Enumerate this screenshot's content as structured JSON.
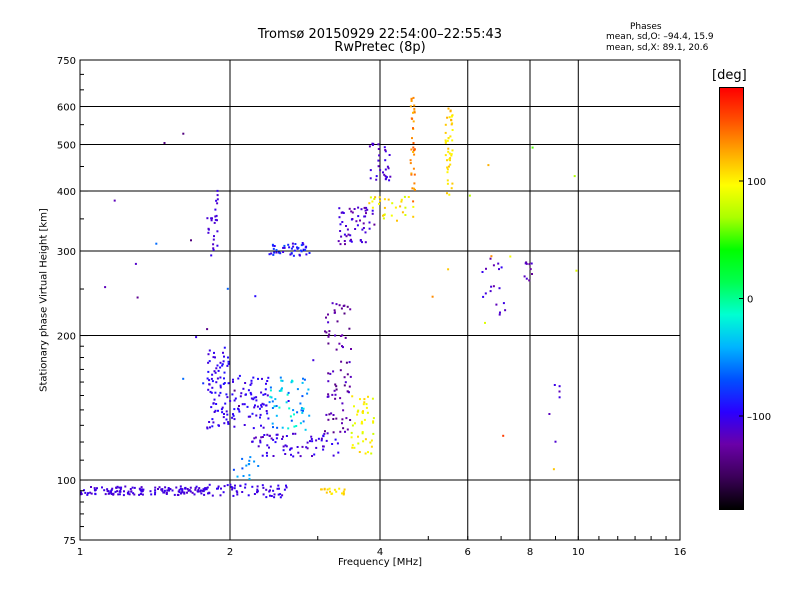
{
  "header": {
    "title_line1": "Tromsø 20150929 22:54:00–22:55:43",
    "title_line2": "RwPretec (8p)",
    "phases_heading": "Phases",
    "phases_o": "mean, sd,O: –94.4, 15.9",
    "phases_x": "mean, sd,X:  89.1, 20.6"
  },
  "colorbar": {
    "title": "[deg]",
    "min": -180,
    "max": 180,
    "ticks": [
      {
        "value": 100,
        "label": "100"
      },
      {
        "value": 0,
        "label": "0"
      },
      {
        "value": -100,
        "label": "–100"
      }
    ],
    "colors": [
      "#000000",
      "#3c005a",
      "#6a00a8",
      "#2a00ff",
      "#0050ff",
      "#00b4ff",
      "#00ffd2",
      "#00ff50",
      "#00ff00",
      "#aaff00",
      "#ffff00",
      "#ffaa00",
      "#ff5000",
      "#ff0000"
    ]
  },
  "chart_data": {
    "type": "scatter",
    "xlabel": "Frequency [MHz]",
    "ylabel": "Stationary phase Virtual Height [km]",
    "x_scale": "log2",
    "y_scale": "log",
    "xlim": [
      1,
      16
    ],
    "ylim": [
      75,
      750
    ],
    "x_ticks": [
      1,
      2,
      4,
      8,
      16
    ],
    "x_minor_ticks": [
      6,
      10
    ],
    "y_ticks": [
      75,
      100,
      200,
      300,
      400,
      500,
      600,
      750
    ],
    "x_gridlines": [
      2,
      4,
      6,
      8,
      10
    ],
    "y_gridlines": [
      100,
      200,
      300,
      400,
      500,
      600
    ],
    "grid": true,
    "clusters": [
      {
        "x": [
          1.0,
          1.8
        ],
        "y": [
          93,
          97
        ],
        "phase": [
          -115,
          -100
        ],
        "n": 150
      },
      {
        "x": [
          1.8,
          2.6
        ],
        "y": [
          92,
          98
        ],
        "phase": [
          -112,
          -98
        ],
        "n": 60
      },
      {
        "x": [
          1.8,
          2.0
        ],
        "y": [
          128,
          192
        ],
        "phase": [
          -110,
          -90
        ],
        "n": 80
      },
      {
        "x": [
          2.0,
          2.4
        ],
        "y": [
          128,
          165
        ],
        "phase": [
          -110,
          -90
        ],
        "n": 70
      },
      {
        "x": [
          2.4,
          2.9
        ],
        "y": [
          127,
          165
        ],
        "phase": [
          -70,
          -10
        ],
        "n": 55
      },
      {
        "x": [
          2.2,
          3.3
        ],
        "y": [
          112,
          125
        ],
        "phase": [
          -120,
          -95
        ],
        "n": 70
      },
      {
        "x": [
          3.1,
          3.5
        ],
        "y": [
          125,
          238
        ],
        "phase": [
          -140,
          -110
        ],
        "n": 80
      },
      {
        "x": [
          3.5,
          3.9
        ],
        "y": [
          113,
          150
        ],
        "phase": [
          80,
          115
        ],
        "n": 45
      },
      {
        "x": [
          1.8,
          1.9
        ],
        "y": [
          300,
          410
        ],
        "phase": [
          -115,
          -100
        ],
        "n": 25
      },
      {
        "x": [
          2.4,
          2.9
        ],
        "y": [
          293,
          312
        ],
        "phase": [
          -110,
          -70
        ],
        "n": 45
      },
      {
        "x": [
          3.3,
          3.9
        ],
        "y": [
          310,
          370
        ],
        "phase": [
          -130,
          -100
        ],
        "n": 55
      },
      {
        "x": [
          3.8,
          4.2
        ],
        "y": [
          420,
          505
        ],
        "phase": [
          -120,
          -100
        ],
        "n": 30
      },
      {
        "x": [
          3.8,
          4.7
        ],
        "y": [
          345,
          390
        ],
        "phase": [
          80,
          120
        ],
        "n": 30
      },
      {
        "x": [
          4.6,
          4.7
        ],
        "y": [
          380,
          630
        ],
        "phase": [
          120,
          150
        ],
        "n": 35
      },
      {
        "x": [
          5.4,
          5.6
        ],
        "y": [
          380,
          600
        ],
        "phase": [
          95,
          125
        ],
        "n": 45
      },
      {
        "x": [
          6.4,
          7.2
        ],
        "y": [
          220,
          295
        ],
        "phase": [
          -130,
          -100
        ],
        "n": 18
      },
      {
        "x": [
          7.8,
          8.1
        ],
        "y": [
          260,
          285
        ],
        "phase": [
          -130,
          -110
        ],
        "n": 10
      },
      {
        "x": [
          8.6,
          9.2
        ],
        "y": [
          115,
          160
        ],
        "phase": [
          -120,
          -100
        ],
        "n": 6
      },
      {
        "x": [
          3.0,
          3.4
        ],
        "y": [
          93,
          96
        ],
        "phase": [
          100,
          118
        ],
        "n": 18
      },
      {
        "x": [
          2.0,
          2.3
        ],
        "y": [
          100,
          112
        ],
        "phase": [
          -80,
          -30
        ],
        "n": 14
      },
      {
        "x": [
          1.1,
          3.0
        ],
        "y": [
          140,
          560
        ],
        "phase": [
          -140,
          -60
        ],
        "n": 20
      },
      {
        "x": [
          4.7,
          11
        ],
        "y": [
          90,
          500
        ],
        "phase": [
          20,
          160
        ],
        "n": 12
      }
    ]
  }
}
